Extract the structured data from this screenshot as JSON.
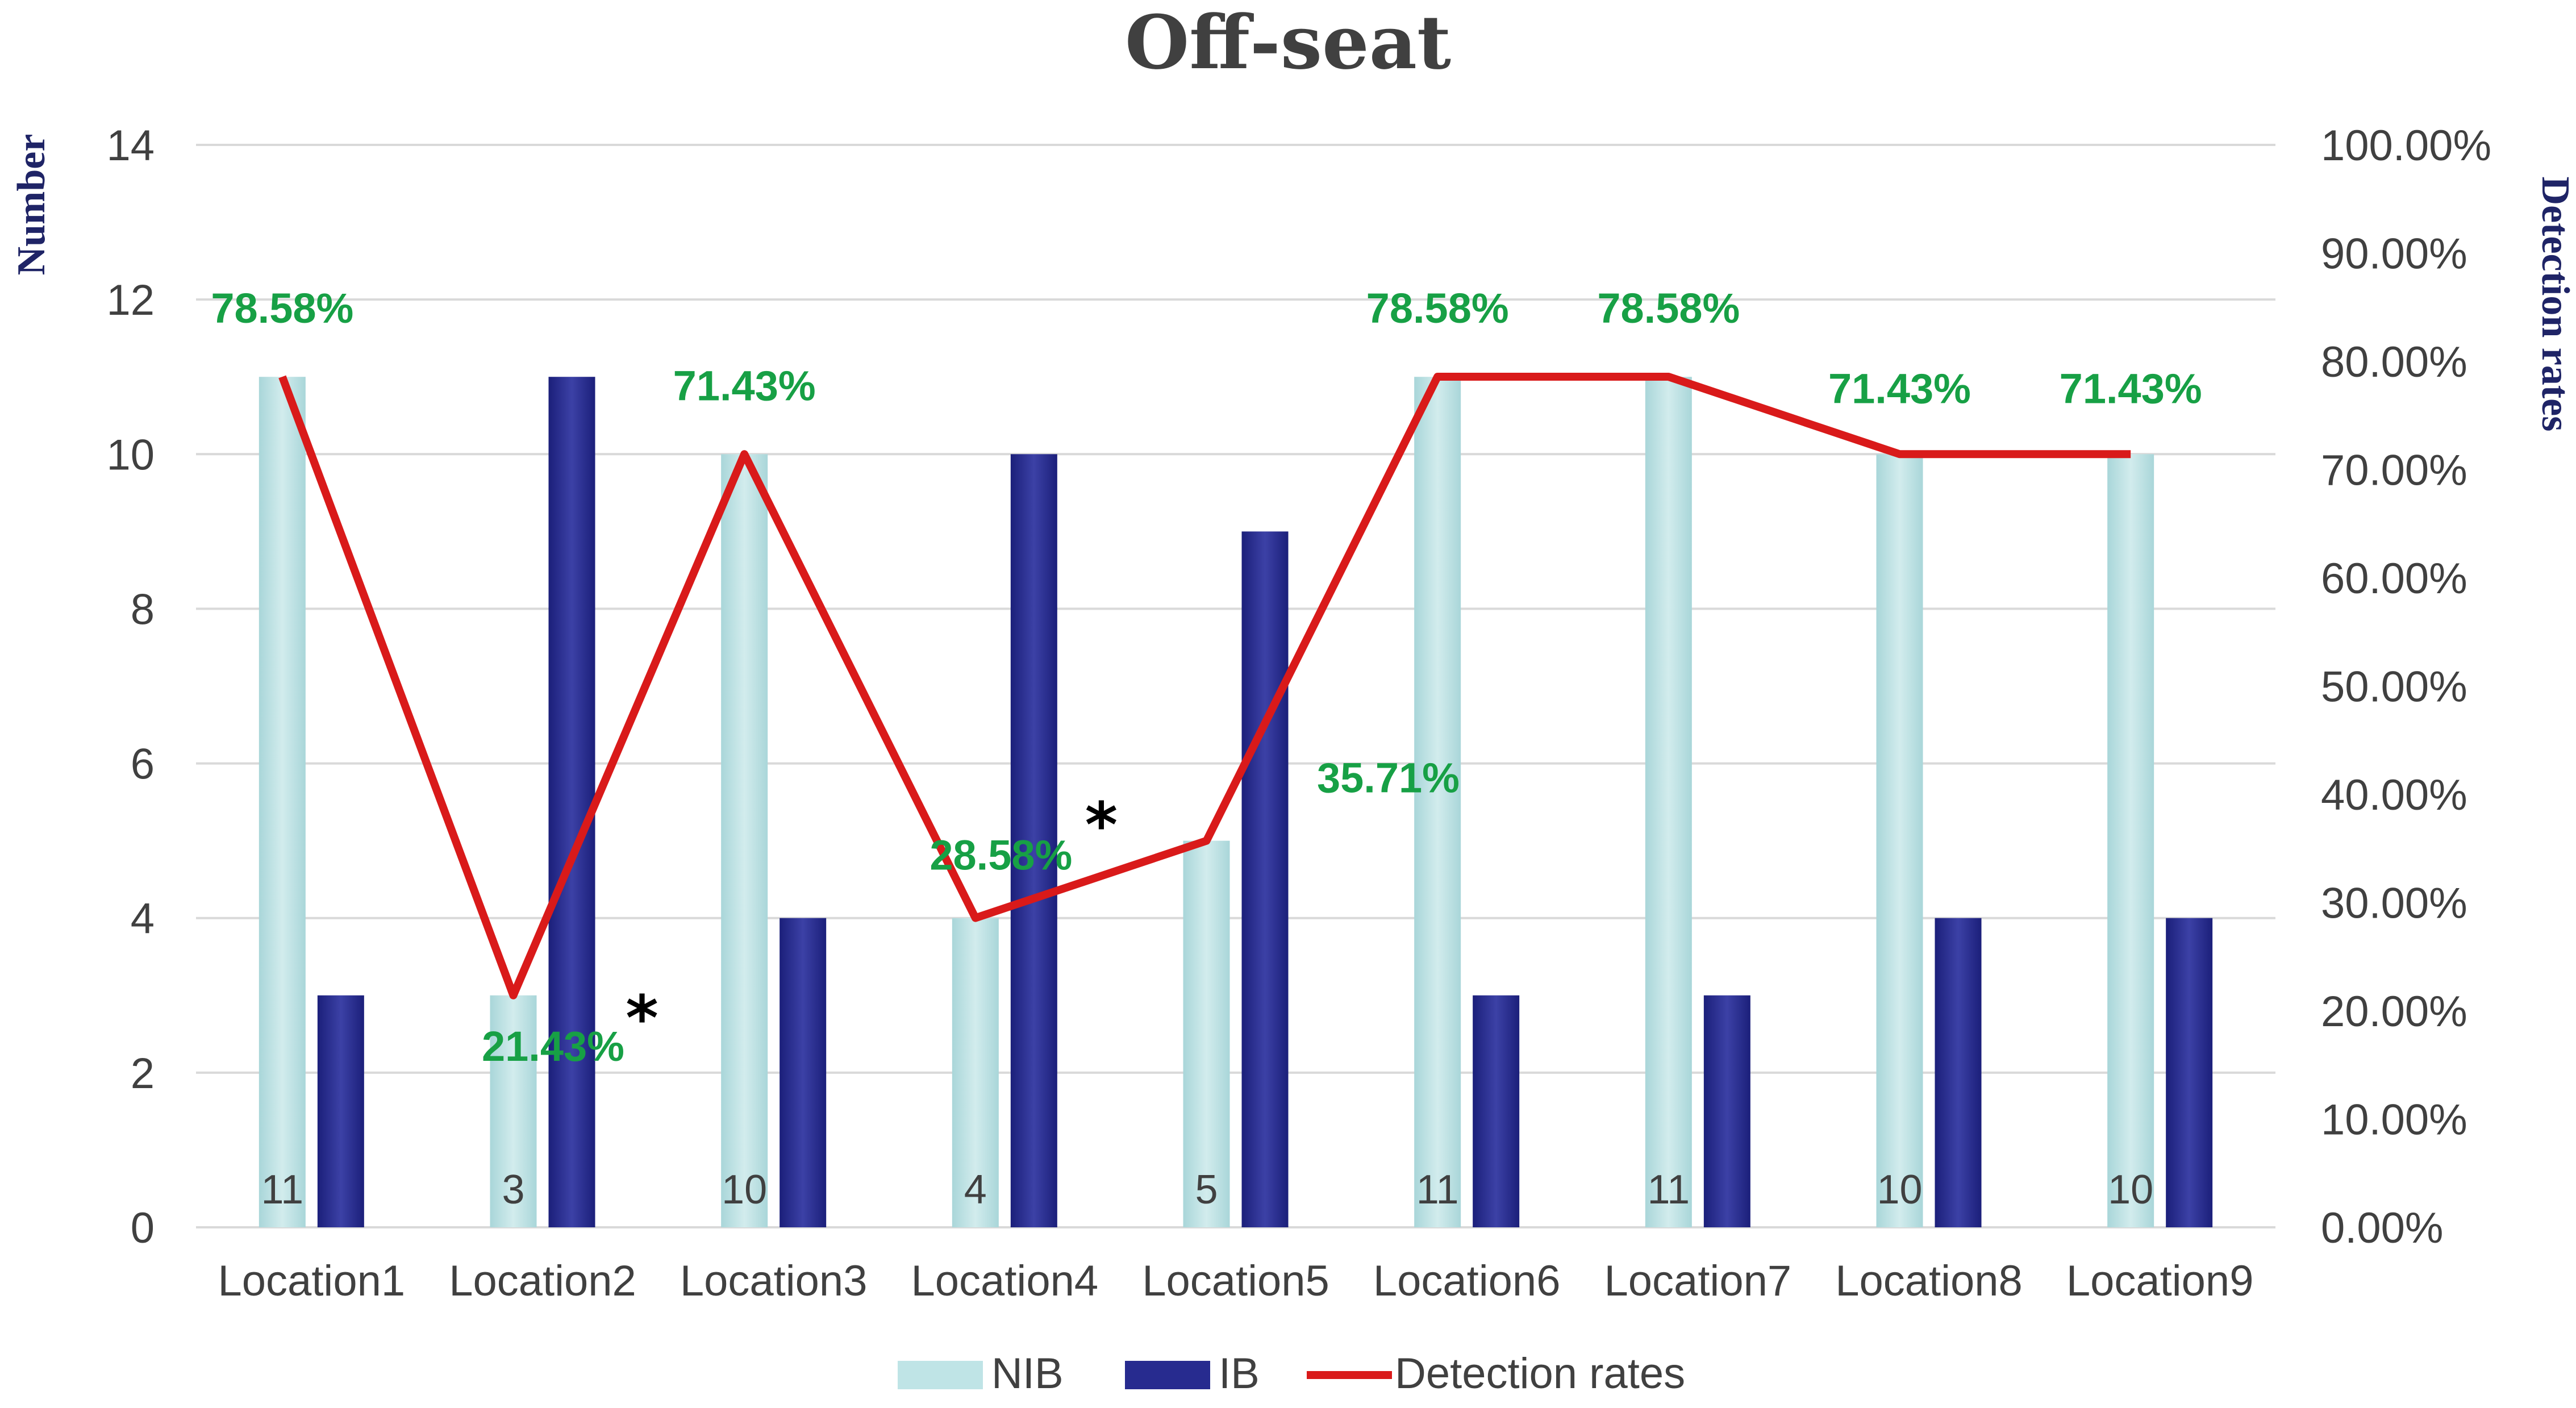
{
  "chart_data": {
    "type": "bar",
    "title": "Off-seat",
    "ylabel": "Number",
    "y2label": "Detection rates",
    "ylim": [
      0,
      14
    ],
    "yticks": [
      0,
      2,
      4,
      6,
      8,
      10,
      12,
      14
    ],
    "y2lim": [
      0,
      100
    ],
    "y2ticks": [
      "0.00%",
      "10.00%",
      "20.00%",
      "30.00%",
      "40.00%",
      "50.00%",
      "60.00%",
      "70.00%",
      "80.00%",
      "90.00%",
      "100.00%"
    ],
    "categories": [
      "Location1",
      "Location2",
      "Location3",
      "Location4",
      "Location5",
      "Location6",
      "Location7",
      "Location8",
      "Location9"
    ],
    "series": [
      {
        "name": "NIB",
        "kind": "bar",
        "color": "#bfe4e6",
        "values": [
          11,
          3,
          10,
          4,
          5,
          11,
          11,
          10,
          10
        ],
        "labels": [
          "11",
          "3",
          "10",
          "4",
          "5",
          "11",
          "11",
          "10",
          "10"
        ]
      },
      {
        "name": "IB",
        "kind": "bar",
        "color": "#272b8f",
        "values": [
          3,
          11,
          4,
          10,
          9,
          3,
          3,
          4,
          4
        ]
      },
      {
        "name": "Detection rates",
        "kind": "line",
        "axis": "right",
        "color": "#d91a1a",
        "values": [
          78.58,
          21.43,
          71.43,
          28.58,
          35.71,
          78.58,
          78.58,
          71.43,
          71.43
        ],
        "labels": [
          "78.58%",
          "21.43%",
          "71.43%",
          "28.58%",
          "35.71%",
          "78.58%",
          "78.58%",
          "71.43%",
          "71.43%"
        ]
      }
    ],
    "annotations": [
      {
        "text": "*",
        "category": "Location2"
      },
      {
        "text": "*",
        "category": "Location4"
      }
    ],
    "label_color": "#17a045",
    "grid": true,
    "legend": "bottom"
  }
}
